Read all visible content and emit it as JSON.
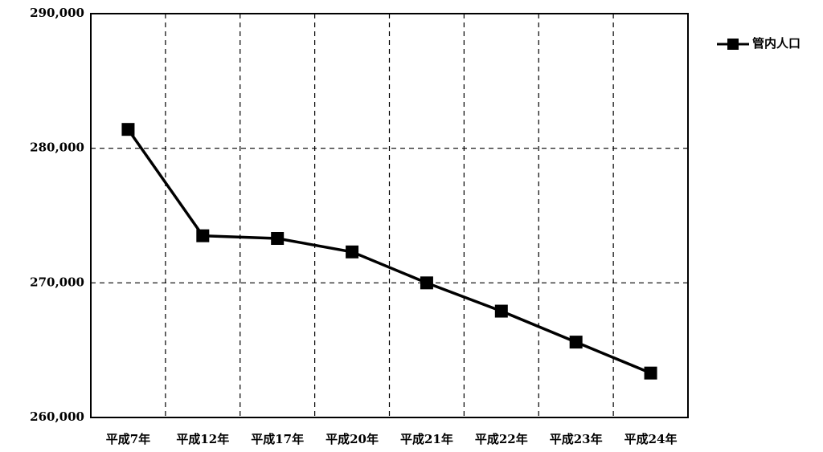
{
  "chart_data": {
    "type": "line",
    "categories": [
      "平成7年",
      "平成12年",
      "平成17年",
      "平成20年",
      "平成21年",
      "平成22年",
      "平成23年",
      "平成24年"
    ],
    "series": [
      {
        "name": "管内人口",
        "color": "#000000",
        "values": [
          281400,
          273500,
          273300,
          272300,
          270000,
          267900,
          265600,
          263300
        ]
      }
    ],
    "ylim": [
      260000,
      290000
    ],
    "yticks": [
      {
        "value": 260000,
        "label": "260,000"
      },
      {
        "value": 270000,
        "label": "270,000"
      },
      {
        "value": 280000,
        "label": "280,000"
      },
      {
        "value": 290000,
        "label": "290,000"
      }
    ],
    "grid": true,
    "legend": "right"
  }
}
